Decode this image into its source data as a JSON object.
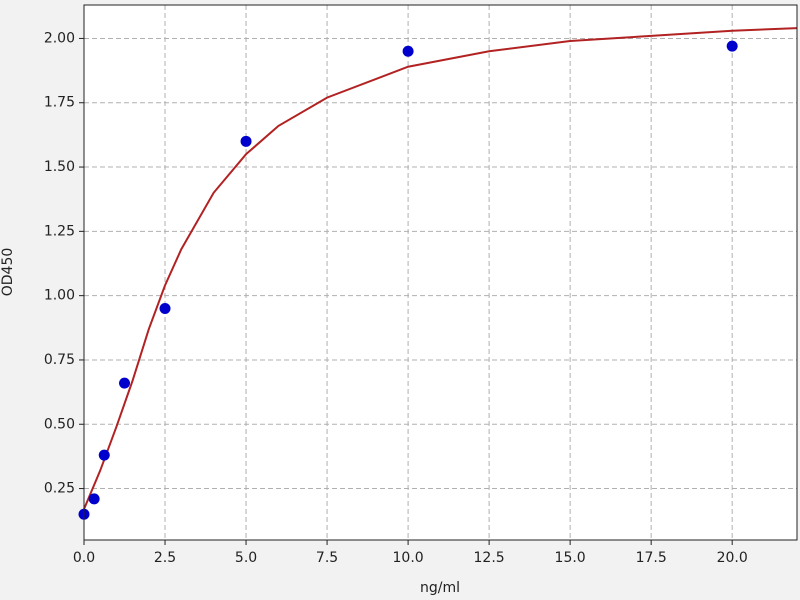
{
  "chart_data": {
    "type": "scatter",
    "xlabel": "ng/ml",
    "ylabel": "OD450",
    "xlim": [
      0,
      22
    ],
    "ylim": [
      0.05,
      2.13
    ],
    "xticks": [
      {
        "value": 0,
        "label": "0.0"
      },
      {
        "value": 2.5,
        "label": "2.5"
      },
      {
        "value": 5,
        "label": "5.0"
      },
      {
        "value": 7.5,
        "label": "7.5"
      },
      {
        "value": 10,
        "label": "10.0"
      },
      {
        "value": 12.5,
        "label": "12.5"
      },
      {
        "value": 15,
        "label": "15.0"
      },
      {
        "value": 17.5,
        "label": "17.5"
      },
      {
        "value": 20,
        "label": "20.0"
      }
    ],
    "yticks": [
      {
        "value": 0.25,
        "label": "0.25"
      },
      {
        "value": 0.5,
        "label": "0.50"
      },
      {
        "value": 0.75,
        "label": "0.75"
      },
      {
        "value": 1,
        "label": "1.00"
      },
      {
        "value": 1.25,
        "label": "1.25"
      },
      {
        "value": 1.5,
        "label": "1.50"
      },
      {
        "value": 1.75,
        "label": "1.75"
      },
      {
        "value": 2,
        "label": "2.00"
      }
    ],
    "grid": true,
    "series": [
      {
        "type": "line",
        "color": "#b22222",
        "x": [
          0,
          0.5,
          1,
          1.5,
          2,
          2.5,
          3,
          4,
          5,
          6,
          7.5,
          10,
          12.5,
          15,
          17.5,
          20,
          22
        ],
        "values": [
          0.17,
          0.32,
          0.49,
          0.67,
          0.87,
          1.04,
          1.18,
          1.4,
          1.55,
          1.66,
          1.77,
          1.89,
          1.95,
          1.99,
          2.01,
          2.03,
          2.04
        ]
      },
      {
        "type": "scatter",
        "color": "#0000cc",
        "x": [
          0,
          0.3125,
          0.625,
          1.25,
          2.5,
          5,
          10,
          20
        ],
        "values": [
          0.15,
          0.21,
          0.38,
          0.66,
          0.95,
          1.6,
          1.95,
          1.97
        ]
      }
    ]
  }
}
